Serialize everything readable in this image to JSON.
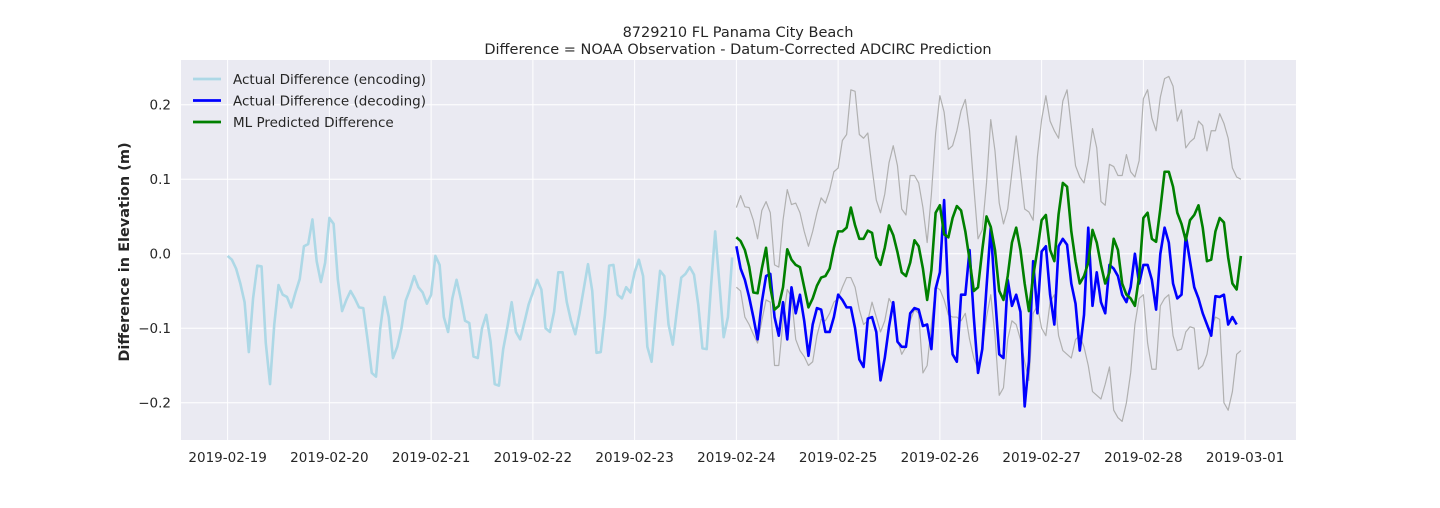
{
  "chart_data": {
    "type": "line",
    "title": "8729210 FL Panama City Beach",
    "subtitle": "Difference = NOAA Observation - Datum-Corrected ADCIRC Prediction",
    "xlabel": "",
    "ylabel": "Difference in Elevation (m)",
    "x_tick_labels": [
      "2019-02-19",
      "2019-02-20",
      "2019-02-21",
      "2019-02-22",
      "2019-02-23",
      "2019-02-24",
      "2019-02-25",
      "2019-02-26",
      "2019-02-27",
      "2019-02-28",
      "2019-03-01"
    ],
    "y_tick_labels": [
      "−0.2",
      "−0.1",
      "0.0",
      "0.1",
      "0.2"
    ],
    "xlim": [
      "2019-02-18 13:00",
      "2019-03-01 12:00"
    ],
    "ylim": [
      -0.25,
      0.26
    ],
    "grid": true,
    "legend_position": "top-left",
    "colors": {
      "plot_bg": "#eaeaf2",
      "encoding": "#add8e6",
      "decoding": "#0000ff",
      "predicted": "#008000",
      "band": "#b0b0b0",
      "grid": "#ffffff"
    },
    "series": [
      {
        "name": "Actual Difference (encoding)",
        "x_start": "2019-02-19 00:00",
        "step_hours": 1,
        "values": [
          -0.003,
          -0.008,
          -0.02,
          -0.04,
          -0.065,
          -0.132,
          -0.06,
          -0.016,
          -0.017,
          -0.12,
          -0.175,
          -0.095,
          -0.042,
          -0.055,
          -0.058,
          -0.072,
          -0.052,
          -0.034,
          0.01,
          0.013,
          0.046,
          -0.01,
          -0.038,
          -0.012,
          0.048,
          0.04,
          -0.035,
          -0.077,
          -0.062,
          -0.05,
          -0.06,
          -0.072,
          -0.073,
          -0.115,
          -0.16,
          -0.165,
          -0.1,
          -0.058,
          -0.085,
          -0.14,
          -0.125,
          -0.1,
          -0.063,
          -0.048,
          -0.03,
          -0.045,
          -0.052,
          -0.067,
          -0.055,
          -0.003,
          -0.015,
          -0.085,
          -0.105,
          -0.06,
          -0.035,
          -0.06,
          -0.09,
          -0.093,
          -0.138,
          -0.14,
          -0.1,
          -0.082,
          -0.117,
          -0.175,
          -0.177,
          -0.128,
          -0.098,
          -0.065,
          -0.105,
          -0.115,
          -0.092,
          -0.068,
          -0.052,
          -0.035,
          -0.048,
          -0.1,
          -0.105,
          -0.078,
          -0.025,
          -0.025,
          -0.065,
          -0.09,
          -0.108,
          -0.08,
          -0.047,
          -0.014,
          -0.05,
          -0.133,
          -0.132,
          -0.082,
          -0.016,
          -0.015,
          -0.055,
          -0.06,
          -0.045,
          -0.052,
          -0.025,
          -0.008,
          -0.03,
          -0.125,
          -0.145,
          -0.08,
          -0.023,
          -0.03,
          -0.095,
          -0.122,
          -0.075,
          -0.032,
          -0.027,
          -0.018,
          -0.028,
          -0.068,
          -0.127,
          -0.128,
          -0.045,
          0.03,
          -0.04,
          -0.112,
          -0.085,
          -0.005
        ]
      },
      {
        "name": "Actual Difference (decoding)",
        "x_start": "2019-02-24 00:00",
        "step_hours": 1,
        "values": [
          0.01,
          -0.02,
          -0.035,
          -0.058,
          -0.085,
          -0.115,
          -0.065,
          -0.03,
          -0.027,
          -0.085,
          -0.11,
          -0.065,
          -0.115,
          -0.045,
          -0.08,
          -0.055,
          -0.09,
          -0.137,
          -0.095,
          -0.073,
          -0.075,
          -0.105,
          -0.105,
          -0.085,
          -0.055,
          -0.062,
          -0.072,
          -0.072,
          -0.1,
          -0.142,
          -0.152,
          -0.087,
          -0.085,
          -0.105,
          -0.17,
          -0.14,
          -0.098,
          -0.065,
          -0.118,
          -0.125,
          -0.125,
          -0.08,
          -0.073,
          -0.075,
          -0.097,
          -0.095,
          -0.128,
          -0.047,
          -0.025,
          0.072,
          -0.06,
          -0.135,
          -0.145,
          -0.055,
          -0.055,
          0.005,
          -0.085,
          -0.16,
          -0.128,
          -0.045,
          0.035,
          -0.055,
          -0.135,
          -0.14,
          -0.035,
          -0.07,
          -0.055,
          -0.078,
          -0.205,
          -0.145,
          -0.01,
          -0.08,
          0.003,
          0.01,
          -0.055,
          -0.095,
          0.01,
          0.02,
          0.012,
          -0.04,
          -0.067,
          -0.13,
          -0.082,
          0.035,
          -0.07,
          -0.025,
          -0.065,
          -0.08,
          -0.015,
          -0.02,
          -0.03,
          -0.055,
          -0.065,
          -0.045,
          0.0,
          -0.04,
          -0.015,
          -0.015,
          -0.035,
          -0.075,
          -0.0,
          0.035,
          0.015,
          -0.04,
          -0.06,
          -0.055,
          0.025,
          -0.01,
          -0.045,
          -0.06,
          -0.08,
          -0.095,
          -0.11,
          -0.057,
          -0.058,
          -0.055,
          -0.095,
          -0.085,
          -0.095
        ]
      },
      {
        "name": "ML Predicted Difference",
        "x_start": "2019-02-24 00:00",
        "step_hours": 1,
        "values": [
          0.022,
          0.017,
          0.005,
          -0.017,
          -0.052,
          -0.053,
          -0.02,
          0.008,
          -0.045,
          -0.075,
          -0.07,
          -0.045,
          0.006,
          -0.008,
          -0.015,
          -0.018,
          -0.045,
          -0.072,
          -0.06,
          -0.043,
          -0.032,
          -0.03,
          -0.02,
          0.008,
          0.03,
          0.03,
          0.035,
          0.062,
          0.038,
          0.02,
          0.02,
          0.031,
          0.028,
          -0.005,
          -0.015,
          0.008,
          0.038,
          0.025,
          0.002,
          -0.025,
          -0.03,
          -0.012,
          0.018,
          0.01,
          -0.02,
          -0.062,
          -0.022,
          0.055,
          0.065,
          0.026,
          0.022,
          0.048,
          0.064,
          0.058,
          0.03,
          -0.008,
          -0.05,
          -0.045,
          0.005,
          0.05,
          0.036,
          0.005,
          -0.05,
          -0.062,
          -0.03,
          0.015,
          0.035,
          0.005,
          -0.04,
          -0.077,
          -0.03,
          0.005,
          0.045,
          0.052,
          0.005,
          -0.01,
          0.053,
          0.095,
          0.09,
          0.03,
          -0.01,
          -0.04,
          -0.03,
          -0.012,
          0.032,
          0.015,
          -0.015,
          -0.04,
          -0.025,
          0.02,
          0.005,
          -0.04,
          -0.055,
          -0.06,
          -0.07,
          -0.03,
          0.048,
          0.055,
          0.02,
          0.016,
          0.06,
          0.11,
          0.11,
          0.09,
          0.055,
          0.04,
          0.018,
          0.045,
          0.052,
          0.065,
          0.035,
          -0.01,
          -0.008,
          0.03,
          0.048,
          0.042,
          -0.005,
          -0.04,
          -0.048,
          -0.003
        ]
      },
      {
        "name": "",
        "x_start": "2019-02-24 00:00",
        "step_hours": 1,
        "values": [
          0.062,
          0.078,
          0.063,
          0.062,
          0.045,
          0.02,
          0.058,
          0.07,
          0.055,
          -0.015,
          -0.018,
          0.045,
          0.086,
          0.066,
          0.068,
          0.055,
          0.03,
          0.01,
          0.03,
          0.055,
          0.075,
          0.068,
          0.085,
          0.11,
          0.115,
          0.152,
          0.16,
          0.22,
          0.218,
          0.16,
          0.155,
          0.162,
          0.115,
          0.072,
          0.055,
          0.08,
          0.122,
          0.145,
          0.118,
          0.06,
          0.052,
          0.105,
          0.105,
          0.095,
          0.062,
          0.015,
          0.08,
          0.162,
          0.212,
          0.19,
          0.14,
          0.145,
          0.165,
          0.192,
          0.207,
          0.165,
          0.09,
          0.02,
          0.032,
          0.095,
          0.18,
          0.138,
          0.068,
          0.04,
          0.06,
          0.11,
          0.158,
          0.11,
          0.06,
          0.056,
          0.045,
          0.13,
          0.18,
          0.212,
          0.178,
          0.165,
          0.155,
          0.205,
          0.22,
          0.17,
          0.118,
          0.103,
          0.095,
          0.125,
          0.168,
          0.142,
          0.07,
          0.065,
          0.12,
          0.117,
          0.105,
          0.105,
          0.133,
          0.11,
          0.103,
          0.125,
          0.208,
          0.22,
          0.182,
          0.165,
          0.21,
          0.235,
          0.238,
          0.225,
          0.178,
          0.193,
          0.142,
          0.15,
          0.155,
          0.178,
          0.172,
          0.138,
          0.165,
          0.165,
          0.188,
          0.175,
          0.155,
          0.115,
          0.103,
          0.1
        ]
      },
      {
        "name": "",
        "x_start": "2019-02-24 00:00",
        "step_hours": 1,
        "values": [
          -0.045,
          -0.05,
          -0.085,
          -0.095,
          -0.108,
          -0.12,
          -0.09,
          -0.062,
          -0.065,
          -0.15,
          -0.15,
          -0.09,
          -0.048,
          -0.058,
          -0.115,
          -0.13,
          -0.138,
          -0.15,
          -0.145,
          -0.11,
          -0.088,
          -0.09,
          -0.08,
          -0.065,
          -0.06,
          -0.045,
          -0.032,
          -0.032,
          -0.045,
          -0.075,
          -0.095,
          -0.09,
          -0.065,
          -0.085,
          -0.105,
          -0.09,
          -0.06,
          -0.07,
          -0.115,
          -0.135,
          -0.125,
          -0.09,
          -0.075,
          -0.08,
          -0.16,
          -0.15,
          -0.095,
          -0.045,
          -0.048,
          -0.062,
          -0.082,
          -0.085,
          -0.085,
          -0.09,
          -0.08,
          -0.115,
          -0.14,
          -0.155,
          -0.13,
          -0.085,
          -0.055,
          -0.11,
          -0.19,
          -0.18,
          -0.115,
          -0.09,
          -0.095,
          -0.115,
          -0.145,
          -0.17,
          -0.08,
          -0.07,
          -0.1,
          -0.11,
          -0.065,
          -0.055,
          -0.11,
          -0.13,
          -0.135,
          -0.14,
          -0.115,
          -0.11,
          -0.125,
          -0.15,
          -0.185,
          -0.19,
          -0.195,
          -0.175,
          -0.152,
          -0.21,
          -0.22,
          -0.225,
          -0.2,
          -0.16,
          -0.095,
          -0.06,
          -0.055,
          -0.12,
          -0.155,
          -0.155,
          -0.07,
          -0.06,
          -0.055,
          -0.11,
          -0.13,
          -0.128,
          -0.105,
          -0.098,
          -0.1,
          -0.155,
          -0.15,
          -0.135,
          -0.1,
          -0.085,
          -0.088,
          -0.2,
          -0.21,
          -0.185,
          -0.135,
          -0.13
        ]
      }
    ]
  }
}
